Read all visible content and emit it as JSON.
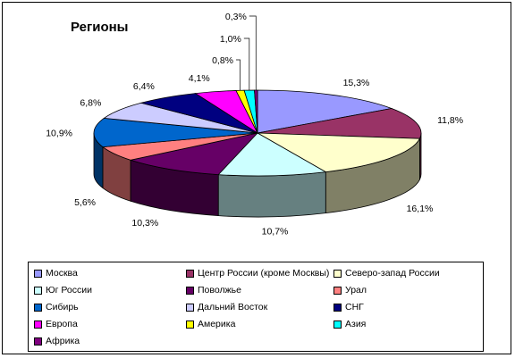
{
  "chart_data": {
    "type": "pie",
    "title": "Регионы",
    "categories": [
      "Москва",
      "Центр России (кроме Москвы)",
      "Северо-запад России",
      "Юг России",
      "Поволжье",
      "Урал",
      "Сибирь",
      "Дальний Восток",
      "СНГ",
      "Европа",
      "Америка",
      "Азия",
      "Африка"
    ],
    "values": [
      15.3,
      11.8,
      16.1,
      10.7,
      10.3,
      5.6,
      10.9,
      6.8,
      6.4,
      4.1,
      0.8,
      1.0,
      0.3
    ],
    "labels": [
      "15,3%",
      "11,8%",
      "16,1%",
      "10,7%",
      "10,3%",
      "5,6%",
      "10,9%",
      "6,8%",
      "6,4%",
      "4,1%",
      "0,8%",
      "1,0%",
      "0,3%"
    ],
    "colors": [
      "#9999ff",
      "#993366",
      "#ffffcc",
      "#ccffff",
      "#660066",
      "#ff8080",
      "#0066cc",
      "#ccccff",
      "#000080",
      "#ff00ff",
      "#ffff00",
      "#00ffff",
      "#800080"
    ],
    "style": "3d-pie",
    "legend_position": "bottom"
  }
}
